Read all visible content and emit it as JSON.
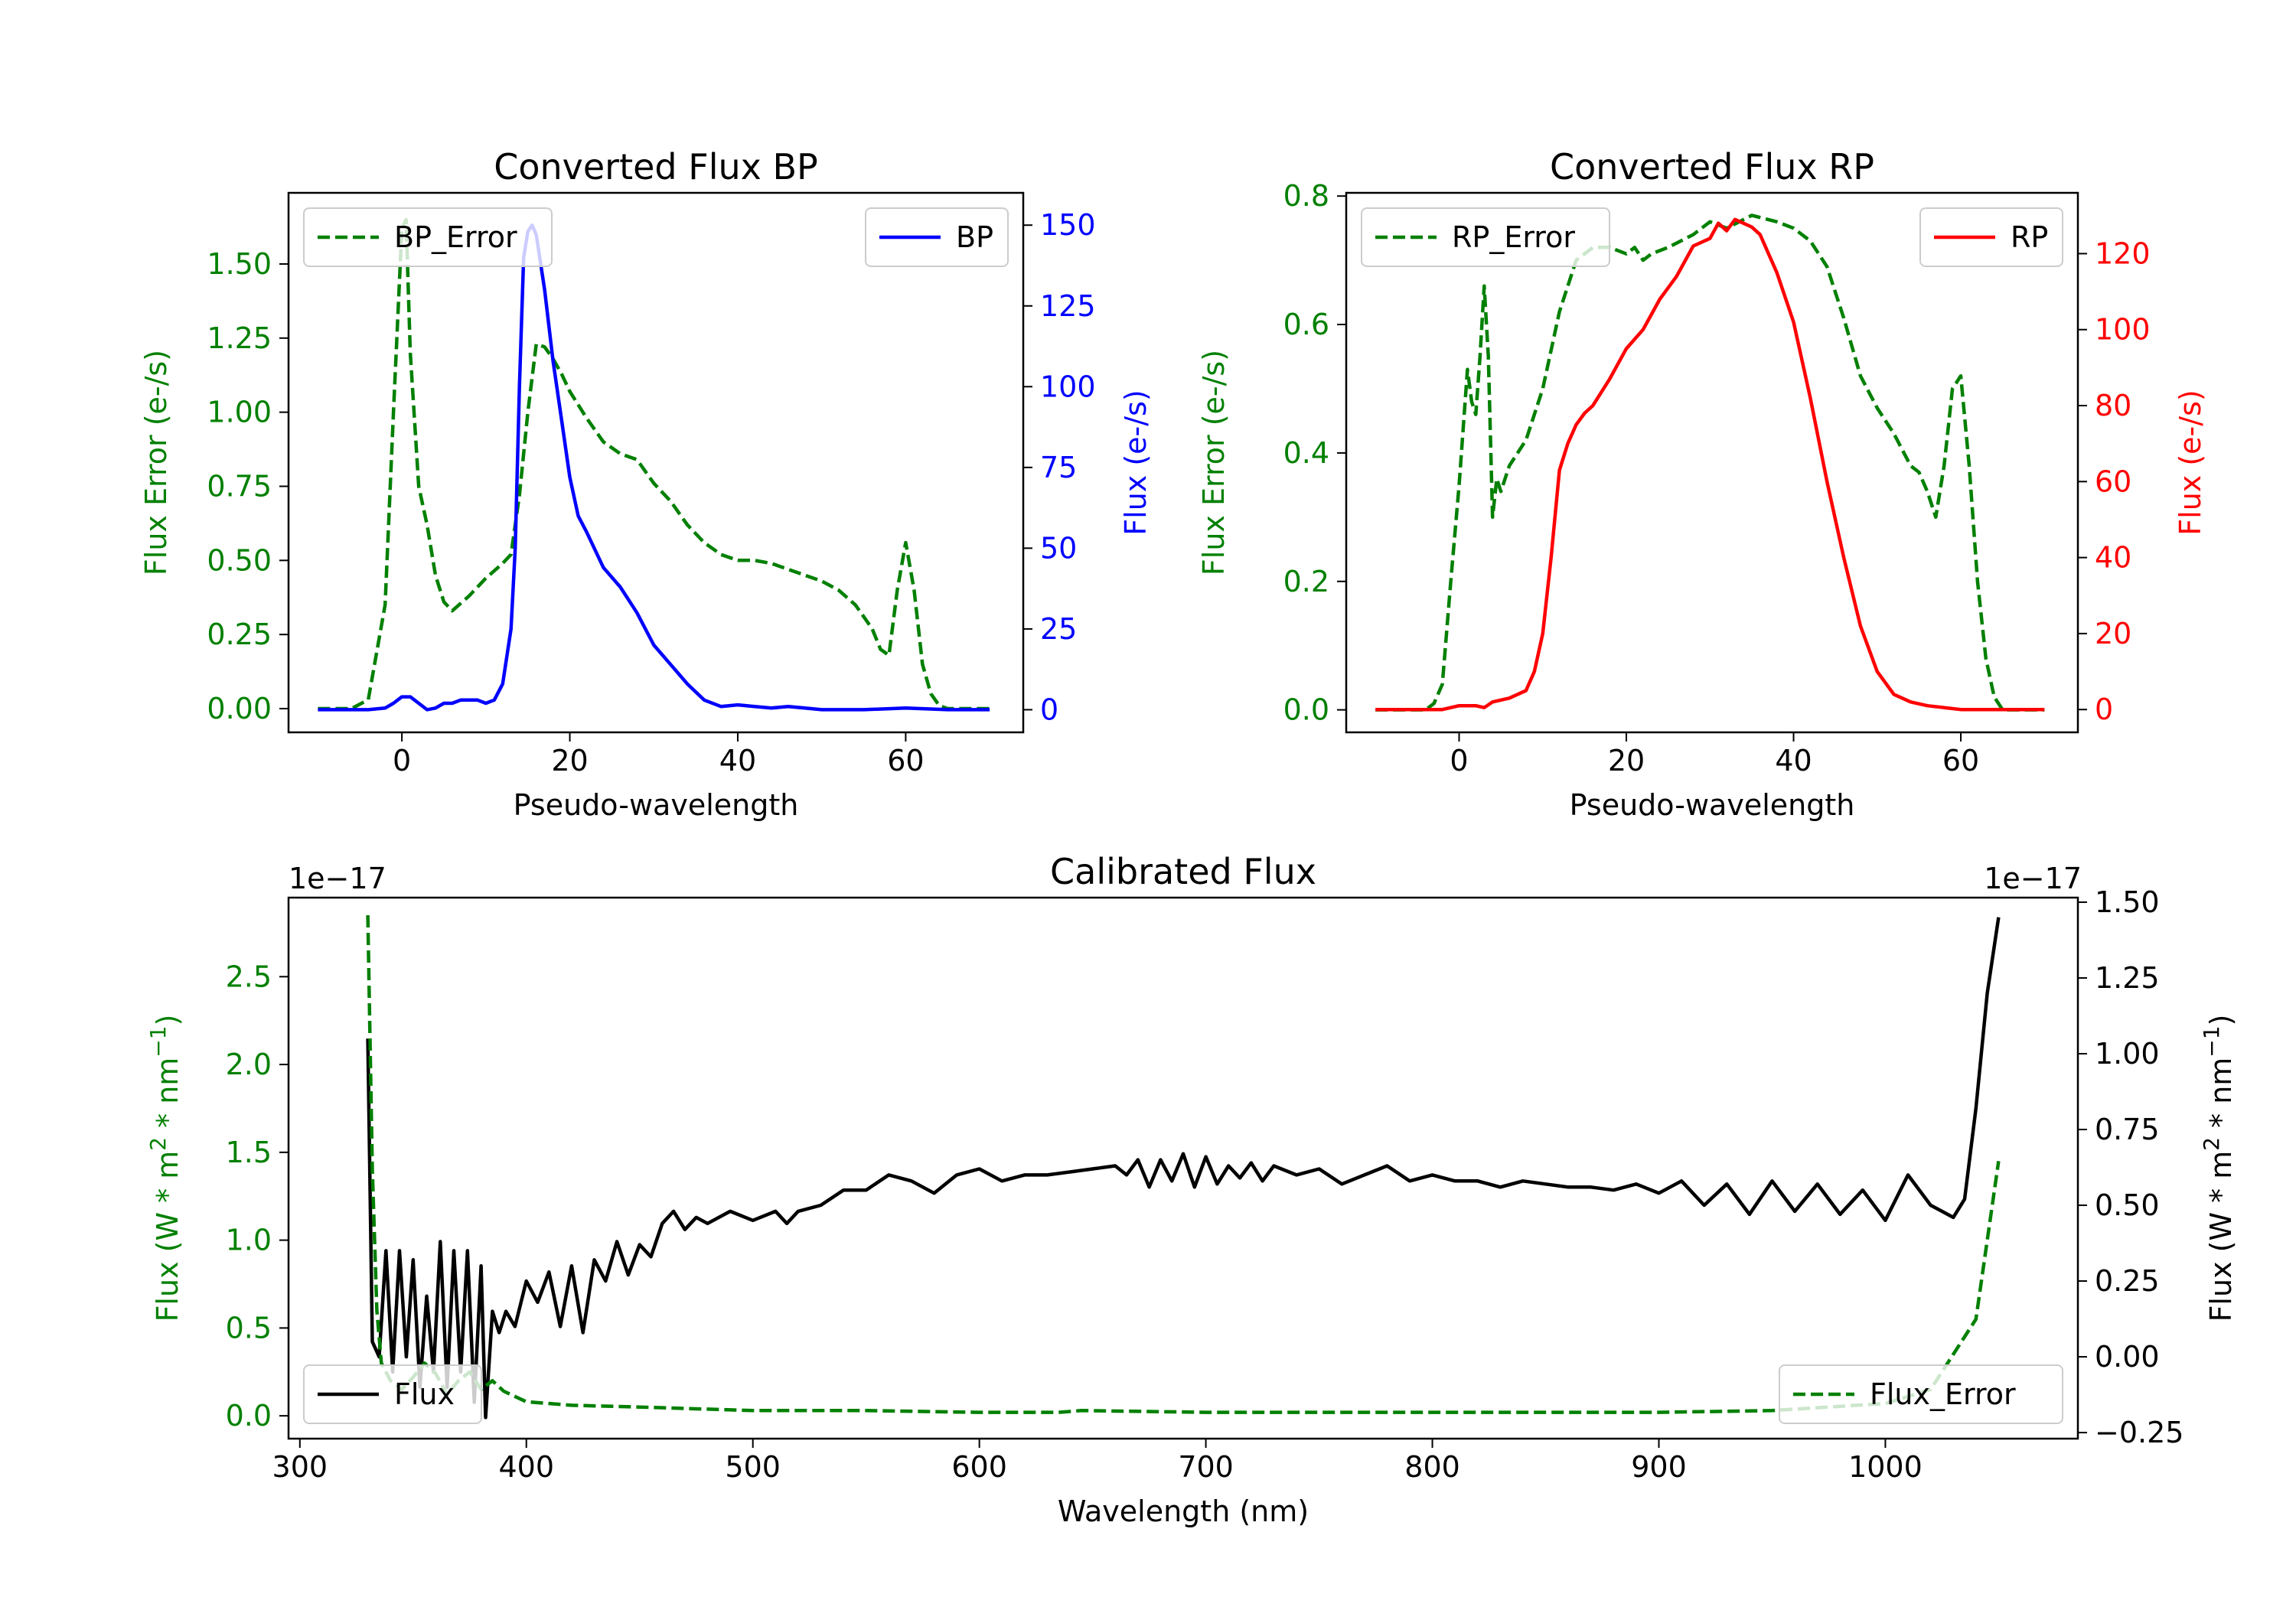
{
  "chart_data": [
    {
      "type": "line",
      "title": "Converted Flux BP",
      "xlabel": "Pseudo-wavelength",
      "ylabel_left": "Flux Error (e-/s)",
      "ylabel_right": "Flux (e-/s)",
      "xlim": [
        -13.5,
        74
      ],
      "ylim_left": [
        -0.08,
        1.74
      ],
      "ylim_right": [
        -7,
        160
      ],
      "xticks": [
        0,
        20,
        40,
        60
      ],
      "xtick_labels": [
        "0",
        "20",
        "40",
        "60"
      ],
      "yticks_left": [
        0,
        0.25,
        0.5,
        0.75,
        1.0,
        1.25,
        1.5
      ],
      "ytick_labels_left": [
        "0.00",
        "0.25",
        "0.50",
        "0.75",
        "1.00",
        "1.25",
        "1.50"
      ],
      "yticks_right": [
        0,
        25,
        50,
        75,
        100,
        125,
        150
      ],
      "ytick_labels_right": [
        "0",
        "25",
        "50",
        "75",
        "100",
        "125",
        "150"
      ],
      "left_color": "#008000",
      "right_color": "#0000ff",
      "legend_left": {
        "label": "BP_Error",
        "placement": "upper-left"
      },
      "legend_right": {
        "label": "BP",
        "placement": "upper-right"
      },
      "series": [
        {
          "name": "BP_Error",
          "axis": "left",
          "color": "#008000",
          "style": "dashed",
          "x": [
            -10,
            -6,
            -4,
            -2,
            -1,
            0,
            0.5,
            1,
            2,
            3,
            4,
            5,
            6,
            8,
            10,
            12,
            13,
            14,
            15,
            16,
            17,
            18,
            19,
            20,
            22,
            24,
            26,
            28,
            30,
            32,
            34,
            36,
            38,
            40,
            42,
            44,
            46,
            48,
            50,
            52,
            54,
            56,
            57,
            58,
            59,
            60,
            61,
            62,
            63,
            64,
            65,
            70
          ],
          "values": [
            0,
            0,
            0.03,
            0.35,
            1.0,
            1.62,
            1.65,
            1.2,
            0.75,
            0.62,
            0.45,
            0.36,
            0.33,
            0.38,
            0.44,
            0.49,
            0.52,
            0.72,
            1.0,
            1.23,
            1.22,
            1.18,
            1.13,
            1.07,
            0.98,
            0.9,
            0.86,
            0.84,
            0.76,
            0.7,
            0.62,
            0.56,
            0.52,
            0.5,
            0.5,
            0.49,
            0.47,
            0.45,
            0.43,
            0.4,
            0.35,
            0.27,
            0.2,
            0.18,
            0.4,
            0.56,
            0.4,
            0.15,
            0.05,
            0.01,
            0,
            0
          ]
        },
        {
          "name": "BP",
          "axis": "right",
          "color": "#0000ff",
          "style": "solid",
          "x": [
            -10,
            -4,
            -2,
            -1,
            0,
            1,
            2,
            3,
            4,
            5,
            6,
            7,
            8,
            9,
            10,
            11,
            12,
            13,
            13.5,
            14,
            14.5,
            15,
            15.5,
            16,
            17,
            18,
            19,
            20,
            21,
            22,
            24,
            26,
            28,
            30,
            32,
            34,
            36,
            38,
            40,
            42,
            44,
            46,
            48,
            50,
            55,
            60,
            65,
            70
          ],
          "values": [
            0,
            0,
            0.5,
            2,
            4,
            4,
            2,
            0,
            0.5,
            2,
            2,
            3,
            3,
            3,
            2,
            3,
            8,
            25,
            50,
            100,
            140,
            148,
            150,
            147,
            130,
            108,
            90,
            72,
            60,
            55,
            44,
            38,
            30,
            20,
            14,
            8,
            3,
            1,
            1.5,
            1,
            0.5,
            1,
            0.5,
            0,
            0,
            0.5,
            0,
            0
          ]
        }
      ]
    },
    {
      "type": "line",
      "title": "Converted Flux RP",
      "xlabel": "Pseudo-wavelength",
      "ylabel_left": "Flux Error (e-/s)",
      "ylabel_right": "Flux (e-/s)",
      "xlim": [
        -13.5,
        74
      ],
      "ylim_left": [
        -0.035,
        0.805
      ],
      "ylim_right": [
        -6,
        136
      ],
      "xticks": [
        0,
        20,
        40,
        60
      ],
      "xtick_labels": [
        "0",
        "20",
        "40",
        "60"
      ],
      "yticks_left": [
        0,
        0.2,
        0.4,
        0.6,
        0.8
      ],
      "ytick_labels_left": [
        "0.0",
        "0.2",
        "0.4",
        "0.6",
        "0.8"
      ],
      "yticks_right": [
        0,
        20,
        40,
        60,
        80,
        100,
        120
      ],
      "ytick_labels_right": [
        "0",
        "20",
        "40",
        "60",
        "80",
        "100",
        "120"
      ],
      "left_color": "#008000",
      "right_color": "#ff0000",
      "legend_left": {
        "label": "RP_Error",
        "placement": "upper-left"
      },
      "legend_right": {
        "label": "RP",
        "placement": "upper-right"
      },
      "series": [
        {
          "name": "RP_Error",
          "axis": "left",
          "color": "#008000",
          "style": "dashed",
          "x": [
            -10,
            -4,
            -3,
            -2,
            -1,
            0,
            1,
            1.5,
            2,
            2.5,
            3,
            3.5,
            4,
            4.5,
            5,
            6,
            7,
            8,
            10,
            12,
            14,
            16,
            18,
            20,
            21,
            22,
            23,
            25,
            28,
            30,
            32,
            35,
            38,
            40,
            42,
            44,
            46,
            48,
            50,
            52,
            54,
            55,
            56,
            57,
            58,
            59,
            60,
            61,
            62,
            63,
            64,
            65,
            70
          ],
          "values": [
            0,
            0,
            0.01,
            0.04,
            0.2,
            0.35,
            0.53,
            0.48,
            0.46,
            0.55,
            0.66,
            0.55,
            0.3,
            0.36,
            0.34,
            0.38,
            0.4,
            0.42,
            0.5,
            0.62,
            0.7,
            0.72,
            0.72,
            0.71,
            0.72,
            0.7,
            0.71,
            0.72,
            0.74,
            0.76,
            0.75,
            0.77,
            0.76,
            0.75,
            0.73,
            0.69,
            0.61,
            0.52,
            0.47,
            0.43,
            0.38,
            0.37,
            0.34,
            0.3,
            0.38,
            0.5,
            0.52,
            0.38,
            0.2,
            0.08,
            0.02,
            0,
            0
          ]
        },
        {
          "name": "RP",
          "axis": "right",
          "color": "#ff0000",
          "style": "solid",
          "x": [
            -10,
            -4,
            -2,
            0,
            2,
            3,
            4,
            6,
            8,
            9,
            10,
            11,
            12,
            13,
            14,
            15,
            16,
            18,
            20,
            22,
            24,
            26,
            28,
            30,
            31,
            32,
            33,
            34,
            35,
            36,
            38,
            40,
            42,
            44,
            46,
            48,
            50,
            52,
            54,
            56,
            58,
            60,
            62,
            65,
            70
          ],
          "values": [
            0,
            0,
            0,
            1,
            1,
            0.5,
            2,
            3,
            5,
            10,
            20,
            40,
            63,
            70,
            75,
            78,
            80,
            87,
            95,
            100,
            108,
            114,
            122,
            124,
            128,
            126,
            129,
            128,
            127,
            125,
            115,
            102,
            82,
            60,
            40,
            22,
            10,
            4,
            2,
            1,
            0.5,
            0,
            0,
            0,
            0
          ]
        }
      ]
    },
    {
      "type": "line",
      "title": "Calibrated Flux",
      "xlabel": "Wavelength (nm)",
      "ylabel_left": "Flux (W * m^2 * nm^-1)",
      "ylabel_right": "Flux (W * m^2 * nm^-1)",
      "offset_left": "1e−17",
      "offset_right": "1e−17",
      "xlim": [
        295,
        1085
      ],
      "ylim_left": [
        -0.13,
        2.95
      ],
      "ylim_right": [
        -0.27,
        1.515
      ],
      "xticks": [
        300,
        400,
        500,
        600,
        700,
        800,
        900,
        1000
      ],
      "xtick_labels": [
        "300",
        "400",
        "500",
        "600",
        "700",
        "800",
        "900",
        "1000"
      ],
      "yticks_left": [
        0,
        0.5,
        1.0,
        1.5,
        2.0,
        2.5
      ],
      "ytick_labels_left": [
        "0.0",
        "0.5",
        "1.0",
        "1.5",
        "2.0",
        "2.5"
      ],
      "yticks_right": [
        -0.25,
        0,
        0.25,
        0.5,
        0.75,
        1.0,
        1.25,
        1.5
      ],
      "ytick_labels_right": [
        "−0.25",
        "0.00",
        "0.25",
        "0.50",
        "0.75",
        "1.00",
        "1.25",
        "1.50"
      ],
      "left_color": "#008000",
      "right_color": "#000000",
      "legend_left": {
        "label": "Flux",
        "placement": "lower-left"
      },
      "legend_right": {
        "label": "Flux_Error",
        "placement": "lower-right"
      },
      "series": [
        {
          "name": "Flux",
          "axis": "right",
          "color": "#000000",
          "style": "solid",
          "x": [
            330,
            332,
            335,
            338,
            341,
            344,
            347,
            350,
            353,
            356,
            359,
            362,
            365,
            368,
            371,
            374,
            377,
            380,
            382,
            385,
            388,
            391,
            395,
            400,
            405,
            410,
            415,
            420,
            425,
            430,
            435,
            440,
            445,
            450,
            455,
            460,
            465,
            470,
            475,
            480,
            490,
            500,
            510,
            515,
            520,
            530,
            540,
            550,
            560,
            570,
            580,
            590,
            600,
            610,
            620,
            630,
            640,
            650,
            660,
            665,
            670,
            675,
            680,
            685,
            690,
            695,
            700,
            705,
            710,
            715,
            720,
            725,
            730,
            740,
            750,
            760,
            770,
            780,
            790,
            800,
            810,
            820,
            830,
            840,
            850,
            860,
            870,
            880,
            890,
            900,
            910,
            920,
            930,
            940,
            950,
            960,
            970,
            980,
            990,
            1000,
            1010,
            1020,
            1025,
            1030,
            1035,
            1040,
            1045,
            1050
          ],
          "values": [
            1.05,
            0.05,
            0.0,
            0.35,
            -0.05,
            0.35,
            0.0,
            0.32,
            -0.1,
            0.2,
            -0.05,
            0.38,
            -0.1,
            0.35,
            -0.05,
            0.35,
            -0.15,
            0.3,
            -0.2,
            0.15,
            0.08,
            0.15,
            0.1,
            0.25,
            0.18,
            0.28,
            0.1,
            0.3,
            0.08,
            0.32,
            0.25,
            0.38,
            0.27,
            0.37,
            0.33,
            0.44,
            0.48,
            0.42,
            0.46,
            0.44,
            0.48,
            0.45,
            0.48,
            0.44,
            0.48,
            0.5,
            0.55,
            0.55,
            0.6,
            0.58,
            0.54,
            0.6,
            0.62,
            0.58,
            0.6,
            0.6,
            0.61,
            0.62,
            0.63,
            0.6,
            0.65,
            0.56,
            0.65,
            0.58,
            0.67,
            0.56,
            0.66,
            0.57,
            0.63,
            0.59,
            0.64,
            0.58,
            0.63,
            0.6,
            0.62,
            0.57,
            0.6,
            0.63,
            0.58,
            0.6,
            0.58,
            0.58,
            0.56,
            0.58,
            0.57,
            0.56,
            0.56,
            0.55,
            0.57,
            0.54,
            0.58,
            0.5,
            0.57,
            0.47,
            0.58,
            0.48,
            0.57,
            0.47,
            0.55,
            0.45,
            0.6,
            0.5,
            0.48,
            0.46,
            0.52,
            0.82,
            1.2,
            1.45
          ]
        },
        {
          "name": "Flux_Error",
          "axis": "left",
          "color": "#008000",
          "style": "dashed",
          "x": [
            330,
            332,
            334,
            336,
            340,
            345,
            350,
            355,
            360,
            365,
            370,
            375,
            380,
            385,
            390,
            400,
            420,
            450,
            500,
            550,
            600,
            635,
            645,
            700,
            800,
            900,
            950,
            1000,
            1020,
            1030,
            1035,
            1040,
            1045,
            1050
          ],
          "values": [
            2.85,
            1.4,
            0.6,
            0.3,
            0.2,
            0.15,
            0.22,
            0.3,
            0.24,
            0.12,
            0.2,
            0.25,
            0.15,
            0.2,
            0.14,
            0.08,
            0.06,
            0.05,
            0.03,
            0.03,
            0.02,
            0.02,
            0.03,
            0.02,
            0.02,
            0.02,
            0.03,
            0.07,
            0.15,
            0.35,
            0.45,
            0.55,
            1.0,
            1.45
          ]
        }
      ]
    }
  ]
}
